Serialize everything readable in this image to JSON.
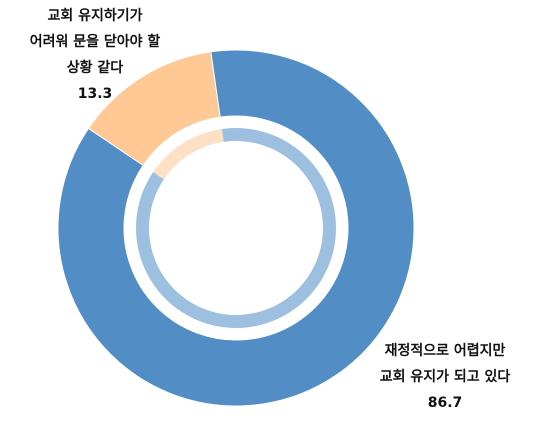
{
  "chart_data": {
    "type": "donut",
    "categories": [
      "교회 유지하기가\n어려워 문을 닫아야 할\n상황 같다",
      "재정적으로 어렵지만\n교회 유지가 되고 있다"
    ],
    "values": [
      13.3,
      86.7
    ],
    "colors": [
      "#ffc894",
      "#528ec5"
    ],
    "inner_colors": [
      "#fde0c5",
      "#9dbfe0"
    ]
  }
}
